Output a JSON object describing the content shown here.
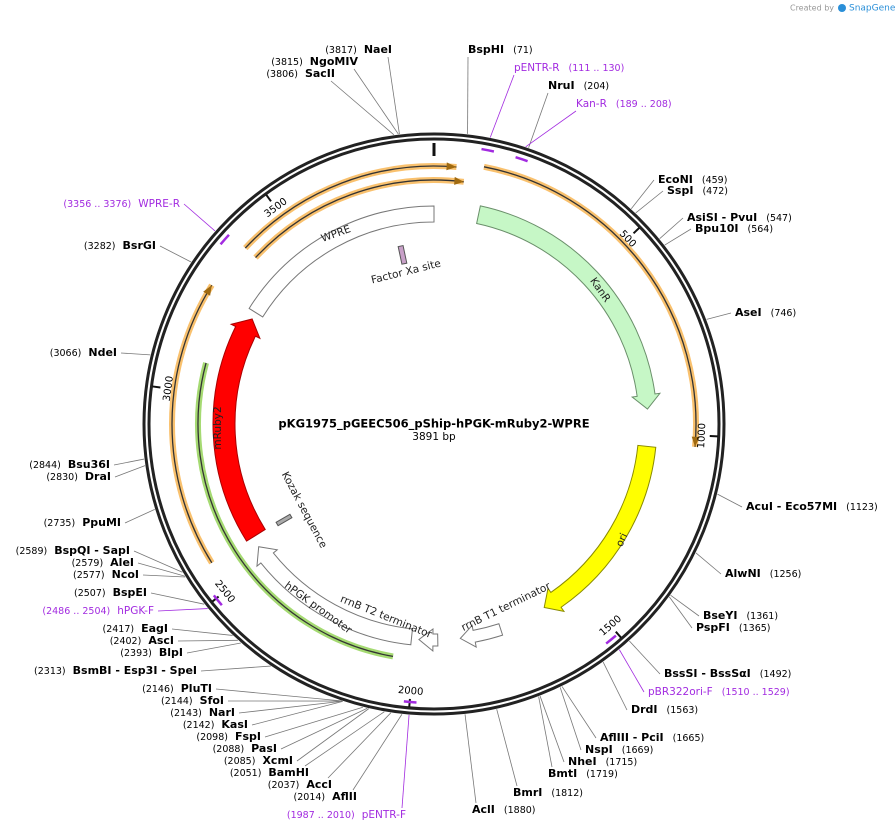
{
  "header": {
    "created_by": "Created by",
    "brand": "SnapGene"
  },
  "plasmid": {
    "name": "pKG1975_pGEEC506_pShip-hPGK-mRuby2-WPRE",
    "length": "3891 bp"
  },
  "ticks": [
    500,
    1000,
    1500,
    2000,
    2500,
    3000,
    3500
  ],
  "features": [
    {
      "label": "KanR"
    },
    {
      "label": "ori"
    },
    {
      "label": "rrnB T1 terminator"
    },
    {
      "label": "rrnB T2 terminator"
    },
    {
      "label": "hPGK promoter"
    },
    {
      "label": "mRuby2"
    },
    {
      "label": "WPRE"
    },
    {
      "label": "Factor Xa site"
    },
    {
      "label": "Kozak sequence"
    }
  ],
  "sites": [
    {
      "name": "BspHI",
      "pos": "(71)"
    },
    {
      "name": "NruI",
      "pos": "(204)"
    },
    {
      "name": "EcoNI",
      "pos": "(459)"
    },
    {
      "name": "SspI",
      "pos": "(472)"
    },
    {
      "name": "AsiSI - PvuI",
      "pos": "(547)"
    },
    {
      "name": "Bpu10I",
      "pos": "(564)"
    },
    {
      "name": "AseI",
      "pos": "(746)"
    },
    {
      "name": "AcuI - Eco57MI",
      "pos": "(1123)"
    },
    {
      "name": "AlwNI",
      "pos": "(1256)"
    },
    {
      "name": "BseYI",
      "pos": "(1361)"
    },
    {
      "name": "PspFI",
      "pos": "(1365)"
    },
    {
      "name": "BssSI - BssSαI",
      "pos": "(1492)"
    },
    {
      "name": "DrdI",
      "pos": "(1563)"
    },
    {
      "name": "AflIII - PciI",
      "pos": "(1665)"
    },
    {
      "name": "NspI",
      "pos": "(1669)"
    },
    {
      "name": "NheI",
      "pos": "(1715)"
    },
    {
      "name": "BmtI",
      "pos": "(1719)"
    },
    {
      "name": "BmrI",
      "pos": "(1812)"
    },
    {
      "name": "AclI",
      "pos": "(1880)"
    },
    {
      "name": "AflII",
      "pos": "(2014)"
    },
    {
      "name": "AccI",
      "pos": "(2037)"
    },
    {
      "name": "BamHI",
      "pos": "(2051)"
    },
    {
      "name": "XcmI",
      "pos": "(2085)"
    },
    {
      "name": "PasI",
      "pos": "(2088)"
    },
    {
      "name": "FspI",
      "pos": "(2098)"
    },
    {
      "name": "KasI",
      "pos": "(2142)"
    },
    {
      "name": "NarI",
      "pos": "(2143)"
    },
    {
      "name": "SfoI",
      "pos": "(2144)"
    },
    {
      "name": "PluTI",
      "pos": "(2146)"
    },
    {
      "name": "BsmBI - Esp3I - SpeI",
      "pos": "(2313)"
    },
    {
      "name": "BlpI",
      "pos": "(2393)"
    },
    {
      "name": "AscI",
      "pos": "(2402)"
    },
    {
      "name": "EagI",
      "pos": "(2417)"
    },
    {
      "name": "BspEI",
      "pos": "(2507)"
    },
    {
      "name": "NcoI",
      "pos": "(2577)"
    },
    {
      "name": "AleI",
      "pos": "(2579)"
    },
    {
      "name": "BspQI - SapI",
      "pos": "(2589)"
    },
    {
      "name": "PpuMI",
      "pos": "(2735)"
    },
    {
      "name": "DraI",
      "pos": "(2830)"
    },
    {
      "name": "Bsu36I",
      "pos": "(2844)"
    },
    {
      "name": "NdeI",
      "pos": "(3066)"
    },
    {
      "name": "BsrGI",
      "pos": "(3282)"
    },
    {
      "name": "SacII",
      "pos": "(3806)"
    },
    {
      "name": "NgoMIV",
      "pos": "(3815)"
    },
    {
      "name": "NaeI",
      "pos": "(3817)"
    }
  ],
  "primers": [
    {
      "name": "pENTR-R",
      "range": "(111 .. 130)"
    },
    {
      "name": "Kan-R",
      "range": "(189 .. 208)"
    },
    {
      "name": "pBR322ori-F",
      "range": "(1510 .. 1529)"
    },
    {
      "name": "pENTR-F",
      "range": "(1987 .. 2010)"
    },
    {
      "name": "hPGK-F",
      "range": "(2486 .. 2504)"
    },
    {
      "name": "WPRE-R",
      "range": "(3356 .. 3376)"
    }
  ]
}
